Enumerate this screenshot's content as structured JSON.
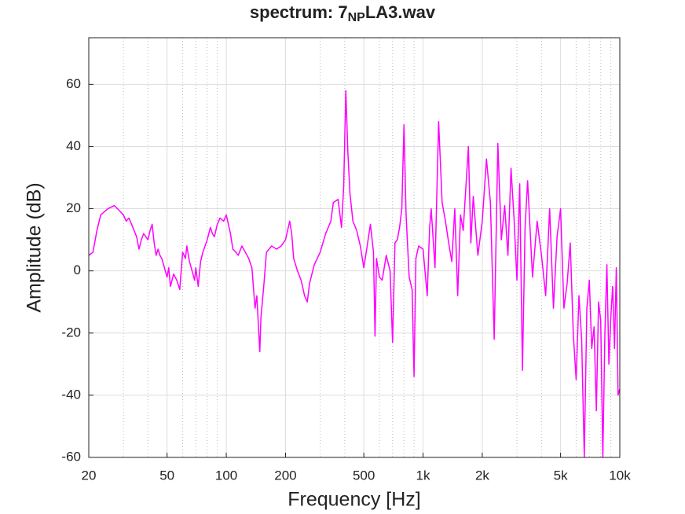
{
  "chart_data": {
    "type": "line",
    "title": [
      "spectrum: 7",
      "NP",
      "LA3.wav"
    ],
    "x_label": "Frequency [Hz]",
    "y_label": "Amplitude (dB)",
    "x_scale": "log",
    "grid": true,
    "xlim": [
      20,
      10000
    ],
    "ylim": [
      -60,
      75
    ],
    "xticks": [
      20,
      50,
      100,
      200,
      500,
      {
        "value": 1000,
        "label": "1k"
      },
      {
        "value": 2000,
        "label": "2k"
      },
      {
        "value": 5000,
        "label": "5k"
      },
      {
        "value": 10000,
        "label": "10k"
      }
    ],
    "xminorticks": [
      30,
      40,
      60,
      70,
      80,
      90,
      300,
      400,
      600,
      700,
      800,
      900,
      3000,
      4000,
      6000,
      7000,
      8000,
      9000
    ],
    "yticks": [
      -60,
      -40,
      -20,
      0,
      20,
      40,
      60
    ],
    "series": [
      {
        "color": "#ff00ff",
        "x": [
          20,
          21,
          22,
          23,
          25,
          27,
          29,
          30,
          31,
          32,
          33,
          35,
          36,
          37,
          38,
          40,
          41,
          42,
          43,
          44,
          45,
          46,
          47,
          48,
          49,
          50,
          51,
          52,
          54,
          56,
          58,
          60,
          62,
          63,
          65,
          67,
          69,
          70,
          72,
          74,
          76,
          78,
          80,
          83,
          85,
          87,
          90,
          93,
          97,
          100,
          105,
          108,
          112,
          115,
          120,
          125,
          130,
          135,
          140,
          143,
          148,
          150,
          155,
          160,
          170,
          180,
          190,
          200,
          210,
          215,
          220,
          230,
          240,
          250,
          258,
          265,
          280,
          300,
          320,
          340,
          350,
          370,
          385,
          395,
          405,
          415,
          425,
          440,
          460,
          480,
          500,
          520,
          540,
          560,
          570,
          580,
          600,
          620,
          650,
          680,
          700,
          720,
          740,
          760,
          780,
          800,
          820,
          850,
          880,
          900,
          920,
          950,
          1000,
          1050,
          1080,
          1100,
          1150,
          1200,
          1250,
          1300,
          1350,
          1400,
          1450,
          1500,
          1550,
          1600,
          1700,
          1750,
          1800,
          1900,
          2000,
          2100,
          2200,
          2300,
          2400,
          2500,
          2600,
          2700,
          2800,
          2900,
          3000,
          3100,
          3200,
          3300,
          3400,
          3600,
          3800,
          4000,
          4200,
          4400,
          4600,
          4800,
          5000,
          5200,
          5400,
          5600,
          5800,
          6000,
          6200,
          6400,
          6600,
          6800,
          7000,
          7200,
          7400,
          7600,
          7800,
          8000,
          8200,
          8400,
          8600,
          8800,
          9000,
          9200,
          9400,
          9600,
          9800,
          10000
        ],
        "values": [
          5,
          6,
          13,
          18,
          20,
          21,
          19,
          18,
          16,
          17,
          15,
          11,
          7,
          10,
          12,
          10,
          13,
          15,
          9,
          5,
          7,
          5,
          4,
          2,
          0,
          -2,
          1,
          -5,
          -1,
          -3,
          -6,
          6,
          4,
          8,
          3,
          0,
          -3,
          1,
          -5,
          3,
          6,
          8,
          10,
          14,
          12,
          11,
          15,
          17,
          16,
          18,
          12,
          7,
          6,
          5,
          8,
          6,
          4,
          1,
          -12,
          -8,
          -26,
          -15,
          -5,
          6,
          8,
          7,
          8,
          10,
          16,
          12,
          4,
          0,
          -3,
          -8,
          -10,
          -4,
          2,
          6,
          12,
          16,
          22,
          23,
          14,
          27,
          58,
          38,
          25,
          16,
          13,
          8,
          1,
          8,
          15,
          6,
          -21,
          4,
          -2,
          -3,
          5,
          0,
          -23,
          9,
          10,
          14,
          20,
          47,
          18,
          -2,
          -6,
          -34,
          4,
          8,
          7,
          -8,
          14,
          20,
          1,
          48,
          22,
          16,
          9,
          3,
          20,
          -8,
          18,
          13,
          40,
          9,
          24,
          5,
          16,
          36,
          22,
          -22,
          41,
          10,
          21,
          5,
          33,
          17,
          -3,
          28,
          -32,
          14,
          29,
          -2,
          16,
          5,
          -8,
          20,
          -12,
          11,
          20,
          -12,
          -4,
          9,
          -20,
          -35,
          -8,
          -22,
          -60,
          -12,
          -3,
          -25,
          -18,
          -45,
          -10,
          -16,
          -60,
          -20,
          2,
          -30,
          -15,
          -5,
          -25,
          1,
          -40,
          -38
        ]
      }
    ]
  }
}
